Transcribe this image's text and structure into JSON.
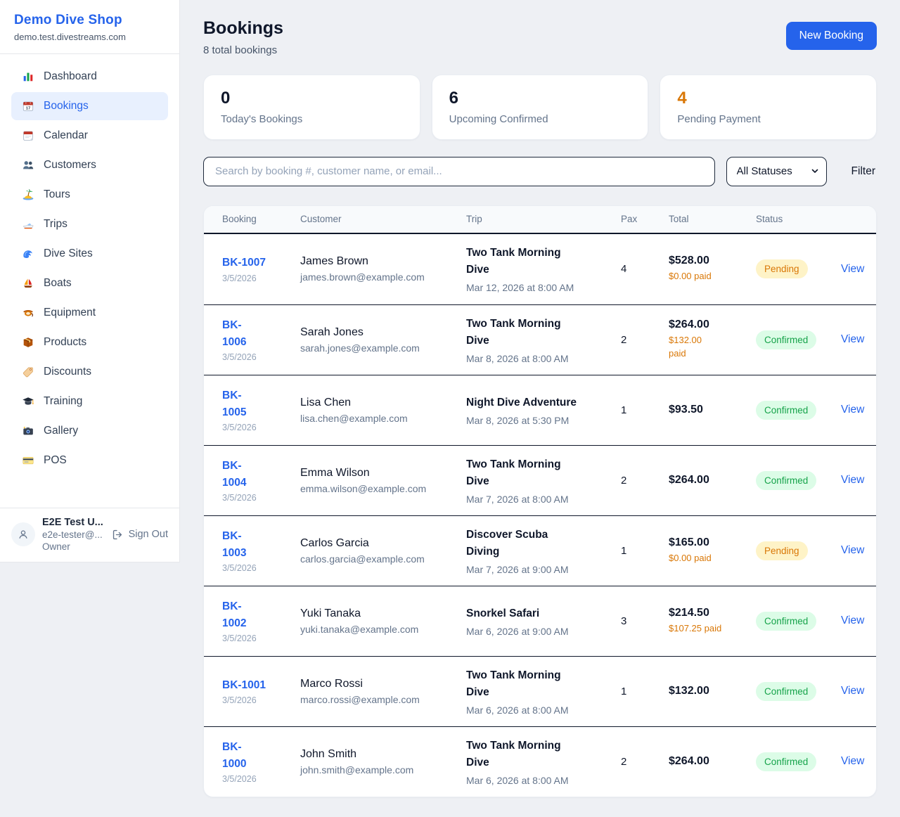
{
  "sidebar": {
    "brand": {
      "name": "Demo Dive Shop",
      "domain": "demo.test.divestreams.com"
    },
    "items": [
      {
        "label": "Dashboard",
        "icon": "bar-chart-icon",
        "active": false
      },
      {
        "label": "Bookings",
        "icon": "calendar-date-icon",
        "active": true
      },
      {
        "label": "Calendar",
        "icon": "calendar-tearoff-icon",
        "active": false
      },
      {
        "label": "Customers",
        "icon": "people-icon",
        "active": false
      },
      {
        "label": "Tours",
        "icon": "island-icon",
        "active": false
      },
      {
        "label": "Trips",
        "icon": "speedboat-icon",
        "active": false
      },
      {
        "label": "Dive Sites",
        "icon": "wave-icon",
        "active": false
      },
      {
        "label": "Boats",
        "icon": "sailboat-icon",
        "active": false
      },
      {
        "label": "Equipment",
        "icon": "dive-mask-icon",
        "active": false
      },
      {
        "label": "Products",
        "icon": "package-icon",
        "active": false
      },
      {
        "label": "Discounts",
        "icon": "tag-icon",
        "active": false
      },
      {
        "label": "Training",
        "icon": "graduation-cap-icon",
        "active": false
      },
      {
        "label": "Gallery",
        "icon": "camera-icon",
        "active": false
      },
      {
        "label": "POS",
        "icon": "credit-card-icon",
        "active": false
      }
    ],
    "user": {
      "name": "E2E Test U...",
      "email": "e2e-tester@...",
      "role": "Owner",
      "sign_out_label": "Sign Out"
    }
  },
  "header": {
    "title": "Bookings",
    "subtitle": "8 total bookings",
    "new_booking_label": "New Booking"
  },
  "stats": [
    {
      "value": "0",
      "label": "Today's Bookings",
      "color": "#0f172a"
    },
    {
      "value": "6",
      "label": "Upcoming Confirmed",
      "color": "#0f172a"
    },
    {
      "value": "4",
      "label": "Pending Payment",
      "color": "#d97706"
    }
  ],
  "filters": {
    "search_placeholder": "Search by booking #, customer name, or email...",
    "status_selected": "All Statuses",
    "filter_label": "Filter"
  },
  "table": {
    "columns": [
      "Booking",
      "Customer",
      "Trip",
      "Pax",
      "Total",
      "Status"
    ],
    "view_label": "View",
    "rows": [
      {
        "id_lines": [
          "BK-1007"
        ],
        "date": "3/5/2026",
        "customer": "James Brown",
        "email": "james.brown@example.com",
        "trip_lines": [
          "Two Tank Morning",
          "Dive"
        ],
        "trip_datetime": "Mar 12, 2026 at 8:00 AM",
        "pax": "4",
        "total": "$528.00",
        "paid_lines": [
          "$0.00 paid"
        ],
        "status": "Pending"
      },
      {
        "id_lines": [
          "BK-",
          "1006"
        ],
        "date": "3/5/2026",
        "customer": "Sarah Jones",
        "email": "sarah.jones@example.com",
        "trip_lines": [
          "Two Tank Morning",
          "Dive"
        ],
        "trip_datetime": "Mar 8, 2026 at 8:00 AM",
        "pax": "2",
        "total": "$264.00",
        "paid_lines": [
          "$132.00",
          "paid"
        ],
        "status": "Confirmed"
      },
      {
        "id_lines": [
          "BK-",
          "1005"
        ],
        "date": "3/5/2026",
        "customer": "Lisa Chen",
        "email": "lisa.chen@example.com",
        "trip_lines": [
          "Night Dive Adventure"
        ],
        "trip_datetime": "Mar 8, 2026 at 5:30 PM",
        "pax": "1",
        "total": "$93.50",
        "paid_lines": [],
        "status": "Confirmed"
      },
      {
        "id_lines": [
          "BK-",
          "1004"
        ],
        "date": "3/5/2026",
        "customer": "Emma Wilson",
        "email": "emma.wilson@example.com",
        "trip_lines": [
          "Two Tank Morning",
          "Dive"
        ],
        "trip_datetime": "Mar 7, 2026 at 8:00 AM",
        "pax": "2",
        "total": "$264.00",
        "paid_lines": [],
        "status": "Confirmed"
      },
      {
        "id_lines": [
          "BK-",
          "1003"
        ],
        "date": "3/5/2026",
        "customer": "Carlos Garcia",
        "email": "carlos.garcia@example.com",
        "trip_lines": [
          "Discover Scuba",
          "Diving"
        ],
        "trip_datetime": "Mar 7, 2026 at 9:00 AM",
        "pax": "1",
        "total": "$165.00",
        "paid_lines": [
          "$0.00 paid"
        ],
        "status": "Pending"
      },
      {
        "id_lines": [
          "BK-",
          "1002"
        ],
        "date": "3/5/2026",
        "customer": "Yuki Tanaka",
        "email": "yuki.tanaka@example.com",
        "trip_lines": [
          "Snorkel Safari"
        ],
        "trip_datetime": "Mar 6, 2026 at 9:00 AM",
        "pax": "3",
        "total": "$214.50",
        "paid_lines": [
          "$107.25 paid"
        ],
        "status": "Confirmed"
      },
      {
        "id_lines": [
          "BK-1001"
        ],
        "date": "3/5/2026",
        "customer": "Marco Rossi",
        "email": "marco.rossi@example.com",
        "trip_lines": [
          "Two Tank Morning",
          "Dive"
        ],
        "trip_datetime": "Mar 6, 2026 at 8:00 AM",
        "pax": "1",
        "total": "$132.00",
        "paid_lines": [],
        "status": "Confirmed"
      },
      {
        "id_lines": [
          "BK-",
          "1000"
        ],
        "date": "3/5/2026",
        "customer": "John Smith",
        "email": "john.smith@example.com",
        "trip_lines": [
          "Two Tank Morning",
          "Dive"
        ],
        "trip_datetime": "Mar 6, 2026 at 8:00 AM",
        "pax": "2",
        "total": "$264.00",
        "paid_lines": [],
        "status": "Confirmed"
      }
    ]
  },
  "colors": {
    "accent": "#2563eb",
    "pending_text": "#d97706",
    "pending_bg": "#fef3c7",
    "confirmed_text": "#16a34a",
    "confirmed_bg": "#dcfce7",
    "page_bg": "#eef0f4"
  }
}
